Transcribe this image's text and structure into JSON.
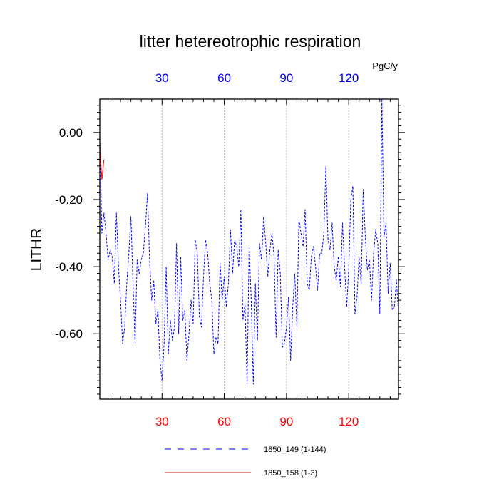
{
  "chart_data": {
    "type": "line",
    "title": "litter hetereotrophic respiration",
    "ylabel": "LITHR",
    "units": "PgC/y",
    "xlim": [
      0,
      144
    ],
    "ylim": [
      -0.795,
      0.0995
    ],
    "x_ticks": [
      30,
      60,
      90,
      120
    ],
    "x_tick_labels": [
      "30",
      "60",
      "90",
      "120"
    ],
    "y_ticks": [
      0.0,
      -0.2,
      -0.4,
      -0.6
    ],
    "y_tick_labels": [
      "0.00",
      "-0.20",
      "-0.40",
      "-0.60"
    ],
    "top_axis_color": "#0000ff",
    "bottom_axis_color": "#ff0000",
    "grid": "vertical dashed gridlines at major x ticks",
    "legend_position": "bottom-center",
    "series": [
      {
        "name": "1850_149 (1-144)",
        "color": "#0000ff",
        "dash": "dashed",
        "x": [
          0,
          1,
          2,
          3,
          4,
          5,
          6,
          7,
          8,
          9,
          10,
          11,
          12,
          13,
          14,
          15,
          16,
          17,
          18,
          19,
          20,
          21,
          22,
          23,
          24,
          25,
          26,
          27,
          28,
          29,
          30,
          31,
          32,
          33,
          34,
          35,
          36,
          37,
          38,
          39,
          40,
          41,
          42,
          43,
          44,
          45,
          46,
          47,
          48,
          49,
          50,
          51,
          52,
          53,
          54,
          55,
          56,
          57,
          58,
          59,
          60,
          61,
          62,
          63,
          64,
          65,
          66,
          67,
          68,
          69,
          70,
          71,
          72,
          73,
          74,
          75,
          76,
          77,
          78,
          79,
          80,
          81,
          82,
          83,
          84,
          85,
          86,
          87,
          88,
          89,
          90,
          91,
          92,
          93,
          94,
          95,
          96,
          97,
          98,
          99,
          100,
          101,
          102,
          103,
          104,
          105,
          106,
          107,
          108,
          109,
          110,
          111,
          112,
          113,
          114,
          115,
          116,
          117,
          118,
          119,
          120,
          121,
          122,
          123,
          124,
          125,
          126,
          127,
          128,
          129,
          130,
          131,
          132,
          133,
          134,
          135,
          136,
          137,
          138,
          139,
          140,
          141,
          142,
          143,
          144
        ],
        "values": [
          -0.02,
          -0.3,
          -0.24,
          -0.3,
          -0.38,
          -0.35,
          -0.37,
          -0.45,
          -0.24,
          -0.4,
          -0.5,
          -0.63,
          -0.58,
          -0.45,
          -0.36,
          -0.25,
          -0.45,
          -0.63,
          -0.38,
          -0.42,
          -0.38,
          -0.36,
          -0.28,
          -0.18,
          -0.38,
          -0.5,
          -0.44,
          -0.57,
          -0.53,
          -0.68,
          -0.74,
          -0.63,
          -0.4,
          -0.66,
          -0.56,
          -0.62,
          -0.58,
          -0.33,
          -0.6,
          -0.37,
          -0.56,
          -0.53,
          -0.68,
          -0.6,
          -0.5,
          -0.57,
          -0.32,
          -0.36,
          -0.55,
          -0.58,
          -0.43,
          -0.32,
          -0.36,
          -0.45,
          -0.5,
          -0.66,
          -0.61,
          -0.63,
          -0.39,
          -0.5,
          -0.43,
          -0.52,
          -0.45,
          -0.29,
          -0.42,
          -0.32,
          -0.34,
          -0.4,
          -0.23,
          -0.56,
          -0.51,
          -0.75,
          -0.34,
          -0.5,
          -0.75,
          -0.45,
          -0.62,
          -0.33,
          -0.38,
          -0.25,
          -0.33,
          -0.43,
          -0.35,
          -0.3,
          -0.37,
          -0.61,
          -0.35,
          -0.42,
          -0.64,
          -0.63,
          -0.58,
          -0.49,
          -0.68,
          -0.52,
          -0.42,
          -0.58,
          -0.26,
          -0.3,
          -0.34,
          -0.23,
          -0.45,
          -0.47,
          -0.37,
          -0.34,
          -0.4,
          -0.47,
          -0.36,
          -0.36,
          -0.3,
          -0.1,
          -0.32,
          -0.35,
          -0.27,
          -0.4,
          -0.44,
          -0.37,
          -0.46,
          -0.27,
          -0.4,
          -0.52,
          -0.41,
          -0.2,
          -0.16,
          -0.54,
          -0.49,
          -0.37,
          -0.45,
          -0.17,
          -0.31,
          -0.41,
          -0.38,
          -0.5,
          -0.36,
          -0.29,
          -0.33,
          -0.54,
          0.1,
          -0.31,
          -0.27,
          -0.48,
          -0.39,
          -0.53,
          -0.52,
          -0.44,
          -0.54
        ]
      },
      {
        "name": "1850_158 (1-3)",
        "color": "#ff0000",
        "dash": "solid",
        "x": [
          0,
          1,
          2
        ],
        "values": [
          -0.04,
          -0.14,
          -0.08
        ]
      }
    ],
    "legend": [
      {
        "label": "1850_149 (1-144)",
        "color": "#0000ff",
        "style": "dashed"
      },
      {
        "label": "1850_158 (1-3)",
        "color": "#ff0000",
        "style": "solid"
      }
    ]
  }
}
